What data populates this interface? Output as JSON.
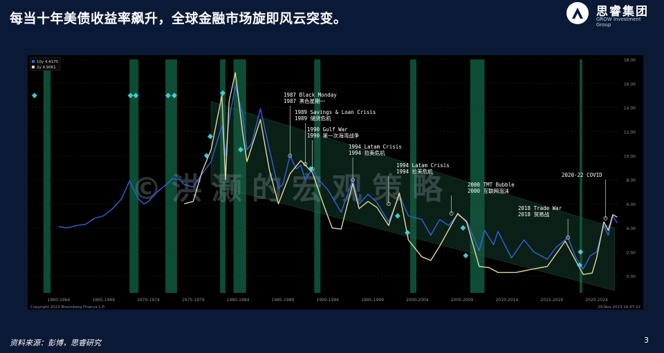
{
  "slide": {
    "title": "每当十年美债收益率飙升，全球金融市场旋即风云突变。",
    "source": "资料来源：彭博，思睿研究",
    "page_number": "3"
  },
  "logo": {
    "brand": "思睿集团",
    "sub": "GROW Investment Group"
  },
  "colors": {
    "background": "#0a1935",
    "panel": "#000000",
    "series_10y": "#2e64e6",
    "series_2y": "#e8d8a0",
    "recession_band": "#0f5a3e",
    "channel": "#1d5a3e",
    "marker": "#4ad9e0"
  },
  "chart_data": {
    "type": "line",
    "legend": [
      {
        "name": "10y",
        "value": "4.4175"
      },
      {
        "name": "2y",
        "value": "4.9061"
      }
    ],
    "legend_position": "top-left",
    "x_tick_labels": [
      "1960-1964",
      "1965-1969",
      "1970-1974",
      "1975-1979",
      "1980-1984",
      "1985-1989",
      "1990-1994",
      "1995-1999",
      "2000-2004",
      "2005-2009",
      "2010-2014",
      "2015-2019",
      "2020-2024"
    ],
    "xlim": [
      1959,
      2024.5
    ],
    "ylim": [
      -1.4,
      18.0
    ],
    "y_ticks": [
      "0.00",
      "2.00",
      "4.00",
      "6.00",
      "8.00",
      "10.00",
      "12.00",
      "14.00",
      "16.00",
      "18.00"
    ],
    "copyright": "Copyright 2023 Bloomberg Finance L.P.",
    "timestamp": "29-Nov-2023 16:47:22",
    "recession_bands": [
      [
        1960.3,
        1961.1
      ],
      [
        1969.9,
        1970.9
      ],
      [
        1973.9,
        1975.2
      ],
      [
        1980.0,
        1980.6
      ],
      [
        1981.5,
        1982.9
      ],
      [
        1990.5,
        1991.2
      ],
      [
        2001.2,
        2001.9
      ],
      [
        2007.9,
        2009.5
      ],
      [
        2020.1,
        2020.4
      ]
    ],
    "channel": {
      "x": [
        1979,
        2024
      ],
      "upper": [
        14.5,
        4.0
      ],
      "lower": [
        7.6,
        -1.2
      ]
    },
    "series": [
      {
        "name": "10y",
        "points": [
          [
            1962,
            4.1
          ],
          [
            1963,
            4.0
          ],
          [
            1964,
            4.2
          ],
          [
            1965,
            4.3
          ],
          [
            1966,
            4.8
          ],
          [
            1967,
            5.0
          ],
          [
            1968,
            5.6
          ],
          [
            1969,
            6.4
          ],
          [
            1969.9,
            7.9
          ],
          [
            1970.9,
            6.4
          ],
          [
            1971.5,
            6.0
          ],
          [
            1972,
            6.2
          ],
          [
            1973,
            7.0
          ],
          [
            1974,
            7.6
          ],
          [
            1974.7,
            8.1
          ],
          [
            1975.5,
            8.0
          ],
          [
            1976,
            7.6
          ],
          [
            1977,
            7.4
          ],
          [
            1978,
            8.5
          ],
          [
            1979,
            9.5
          ],
          [
            1980.2,
            12.5
          ],
          [
            1980.6,
            10.0
          ],
          [
            1981,
            13.0
          ],
          [
            1981.7,
            15.8
          ],
          [
            1982.5,
            13.5
          ],
          [
            1983,
            10.5
          ],
          [
            1983.5,
            11.0
          ],
          [
            1984.5,
            13.9
          ],
          [
            1985.5,
            10.5
          ],
          [
            1986.5,
            7.3
          ],
          [
            1987,
            7.6
          ],
          [
            1987.8,
            10.0
          ],
          [
            1988.5,
            8.9
          ],
          [
            1989,
            9.2
          ],
          [
            1989.5,
            8.0
          ],
          [
            1990.3,
            8.9
          ],
          [
            1991,
            8.0
          ],
          [
            1992,
            7.2
          ],
          [
            1993.5,
            5.3
          ],
          [
            1994.8,
            8.0
          ],
          [
            1995.5,
            6.0
          ],
          [
            1996.5,
            6.8
          ],
          [
            1997.5,
            6.1
          ],
          [
            1998.8,
            4.5
          ],
          [
            2000,
            6.7
          ],
          [
            2001,
            5.0
          ],
          [
            2002.5,
            4.7
          ],
          [
            2003.5,
            3.4
          ],
          [
            2004.5,
            4.7
          ],
          [
            2005.5,
            4.2
          ],
          [
            2006.5,
            5.1
          ],
          [
            2007.5,
            4.6
          ],
          [
            2008.9,
            2.1
          ],
          [
            2009.5,
            3.8
          ],
          [
            2010.5,
            2.6
          ],
          [
            2011,
            3.7
          ],
          [
            2012.5,
            1.5
          ],
          [
            2013.9,
            3.0
          ],
          [
            2015,
            2.0
          ],
          [
            2016.5,
            1.4
          ],
          [
            2017.5,
            2.4
          ],
          [
            2018.8,
            3.2
          ],
          [
            2019.7,
            1.5
          ],
          [
            2020.5,
            0.6
          ],
          [
            2021.3,
            1.7
          ],
          [
            2022,
            2.0
          ],
          [
            2022.8,
            4.2
          ],
          [
            2023.3,
            3.4
          ],
          [
            2023.8,
            5.0
          ],
          [
            2024.3,
            4.4
          ]
        ]
      },
      {
        "name": "2y",
        "points": [
          [
            1976,
            6.0
          ],
          [
            1977,
            6.2
          ],
          [
            1978,
            8.7
          ],
          [
            1979,
            10.5
          ],
          [
            1980.2,
            15.0
          ],
          [
            1980.6,
            8.0
          ],
          [
            1981,
            14.5
          ],
          [
            1981.7,
            16.9
          ],
          [
            1982.5,
            12.0
          ],
          [
            1983,
            9.5
          ],
          [
            1984.5,
            13.0
          ],
          [
            1985.5,
            8.8
          ],
          [
            1986.5,
            6.0
          ],
          [
            1987.8,
            8.5
          ],
          [
            1989,
            9.6
          ],
          [
            1990.3,
            8.6
          ],
          [
            1991.5,
            6.0
          ],
          [
            1992.5,
            4.0
          ],
          [
            1993.5,
            3.9
          ],
          [
            1994.8,
            7.7
          ],
          [
            1995.5,
            5.6
          ],
          [
            1996.5,
            6.2
          ],
          [
            1997.5,
            5.7
          ],
          [
            1998.8,
            4.2
          ],
          [
            2000,
            6.9
          ],
          [
            2001,
            3.0
          ],
          [
            2002.5,
            1.6
          ],
          [
            2003.5,
            1.3
          ],
          [
            2004.5,
            2.5
          ],
          [
            2006.5,
            5.2
          ],
          [
            2007.5,
            4.5
          ],
          [
            2008.9,
            0.8
          ],
          [
            2010,
            0.7
          ],
          [
            2011,
            0.3
          ],
          [
            2013,
            0.3
          ],
          [
            2015,
            0.6
          ],
          [
            2016.5,
            0.8
          ],
          [
            2018.5,
            2.9
          ],
          [
            2019.5,
            1.5
          ],
          [
            2020.5,
            0.13
          ],
          [
            2021.5,
            0.25
          ],
          [
            2022,
            1.5
          ],
          [
            2022.8,
            4.5
          ],
          [
            2023.3,
            3.8
          ],
          [
            2023.8,
            5.1
          ],
          [
            2024.3,
            4.9
          ]
        ]
      }
    ],
    "annotations": [
      {
        "x": 1987.8,
        "y": 10.0,
        "lines": [
          "1987 Black Monday",
          "1987 黑色星期一"
        ]
      },
      {
        "x": 1989.5,
        "y": 9.3,
        "lines": [
          "1989 Savings & Loan Crisis",
          "1989 储贷危机"
        ]
      },
      {
        "x": 1990.3,
        "y": 8.9,
        "lines": [
          "1990 Gulf War",
          "1990 第一次海湾战争"
        ]
      },
      {
        "x": 1994.8,
        "y": 8.0,
        "lines": [
          "1994 Latam Crisis",
          "1994 拉美危机"
        ]
      },
      {
        "x": 1998.8,
        "y": 6.0,
        "lines": [
          "1994 Latam Crisis",
          "1994 拉美危机"
        ]
      },
      {
        "x": 2005.8,
        "y": 5.2,
        "lines": [
          "2000 TMT Bubble",
          "2000 互联网泡沫"
        ]
      },
      {
        "x": 2018.8,
        "y": 3.2,
        "lines": [
          "2018 Trade War",
          "2018 贸易战"
        ]
      },
      {
        "x": 2023.0,
        "y": 4.8,
        "lines": [
          "2020-22 COVID"
        ]
      }
    ],
    "markers": [
      [
        1959.3,
        15.0
      ],
      [
        1970,
        15.0
      ],
      [
        1970.6,
        15.0
      ],
      [
        1974.2,
        15.0
      ],
      [
        1974.9,
        15.0
      ],
      [
        1980.3,
        15.2
      ],
      [
        1978.5,
        10.0
      ],
      [
        1978.9,
        11.6
      ],
      [
        1982.3,
        10.5
      ],
      [
        1990.1,
        8.9
      ],
      [
        1999.8,
        5.0
      ],
      [
        2000.9,
        3.6
      ],
      [
        2007.1,
        4.0
      ],
      [
        2007.4,
        1.7
      ],
      [
        2020.2,
        2.0
      ],
      [
        2020.1,
        0.9
      ]
    ],
    "watermark": "©洪灏的宏观策略"
  }
}
